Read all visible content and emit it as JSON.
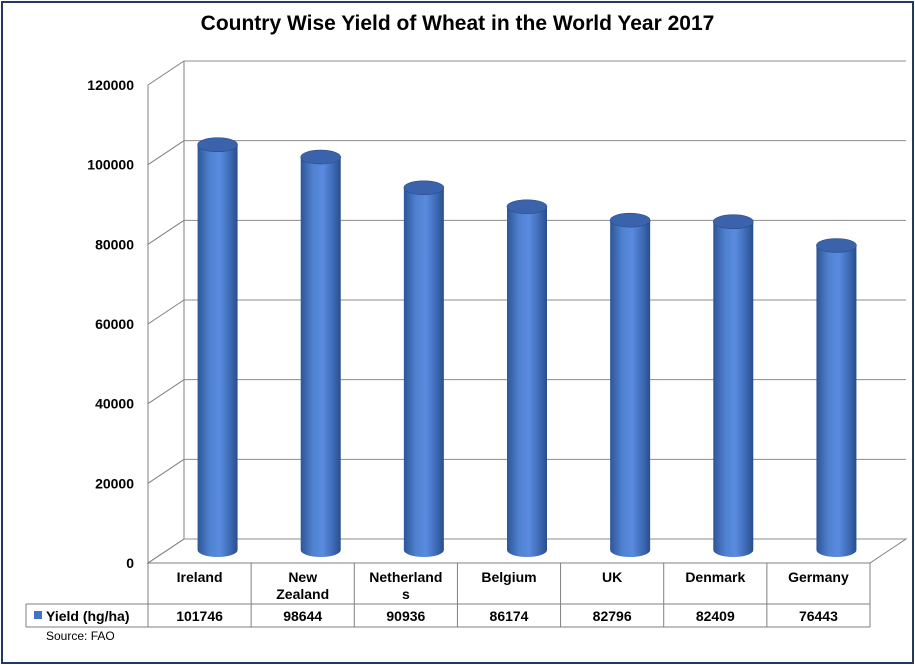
{
  "chart_data": {
    "type": "bar",
    "title": "Country Wise Yield of Wheat in the World Year 2017",
    "categories": [
      "Ireland",
      "New Zealand",
      "Netherlands",
      "Belgium",
      "UK",
      "Denmark",
      "Germany"
    ],
    "category_lines": [
      [
        "Ireland"
      ],
      [
        "New",
        "Zealand"
      ],
      [
        "Netherland",
        "s"
      ],
      [
        "Belgium"
      ],
      [
        "UK"
      ],
      [
        "Denmark"
      ],
      [
        "Germany"
      ]
    ],
    "series": [
      {
        "name": "Yield (hg/ha)",
        "values": [
          101746,
          98644,
          90936,
          86174,
          82796,
          82409,
          76443
        ],
        "color": "#4472c4"
      }
    ],
    "value_labels": [
      "101746",
      "98644",
      "90936",
      "86174",
      "82796",
      "82409",
      "76443"
    ],
    "ylim": [
      0,
      120000
    ],
    "yticks": [
      "0",
      "20000",
      "40000",
      "60000",
      "80000",
      "100000",
      "120000"
    ],
    "grid": true,
    "three_d": true,
    "legend": "data table"
  },
  "source": "Source: FAO"
}
